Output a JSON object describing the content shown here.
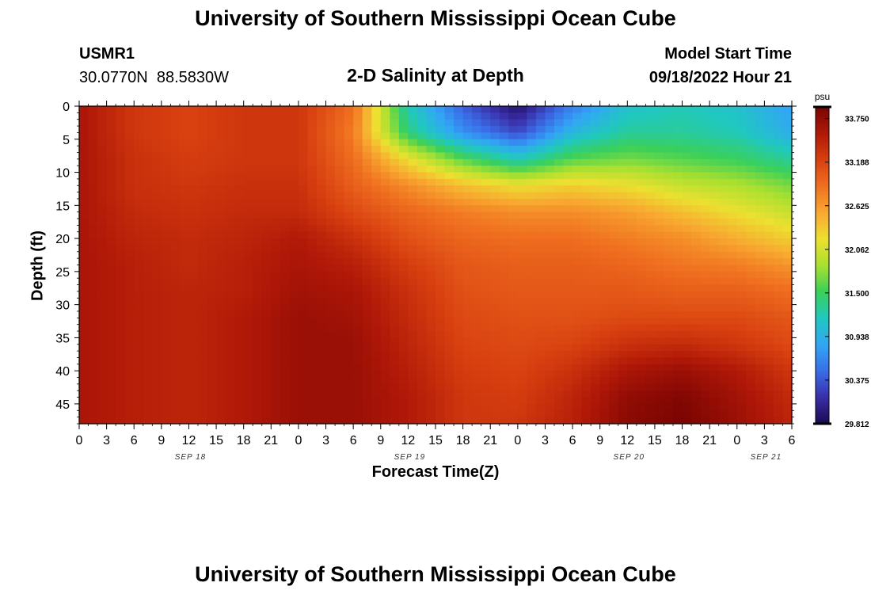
{
  "header": {
    "title": "University of Southern Mississippi Ocean Cube",
    "station_id": "USMR1",
    "station_coords": "30.0770N  88.5830W",
    "plot_title": "2-D Salinity at Depth",
    "model_start_label": "Model Start Time",
    "model_start_value": "09/18/2022 Hour 21"
  },
  "footer": {
    "title": "University of Southern Mississippi Ocean Cube"
  },
  "chart_data": {
    "type": "heatmap",
    "title": "2-D Salinity at Depth",
    "xlabel": "Forecast Time(Z)",
    "ylabel": "Depth (ft)",
    "x_tick_labels": [
      "0",
      "3",
      "6",
      "9",
      "12",
      "15",
      "18",
      "21",
      "0",
      "3",
      "6",
      "9",
      "12",
      "15",
      "18",
      "21",
      "0",
      "3",
      "6",
      "9",
      "12",
      "15",
      "18",
      "21",
      "0",
      "3",
      "6"
    ],
    "x_day_labels": [
      {
        "label": "SEP 18",
        "tick_index": 4
      },
      {
        "label": "SEP 19",
        "tick_index": 12
      },
      {
        "label": "SEP 20",
        "tick_index": 20
      },
      {
        "label": "SEP 21",
        "tick_index": 25
      }
    ],
    "y_ticks": [
      0,
      5,
      10,
      15,
      20,
      25,
      30,
      35,
      40,
      45
    ],
    "ylim": [
      0,
      48
    ],
    "y_inverted": true,
    "colorbar": {
      "unit": "psu",
      "tick_labels": [
        "33.750",
        "33.188",
        "32.625",
        "32.062",
        "31.500",
        "30.938",
        "30.375",
        "29.812"
      ],
      "min": 29.812,
      "max": 33.9,
      "colors": [
        "#1a0a50",
        "#3a2ea8",
        "#3a6ee8",
        "#32a6f5",
        "#20c8c0",
        "#3ad05a",
        "#a8e030",
        "#ece030",
        "#f8a830",
        "#f07020",
        "#d84010",
        "#b01808",
        "#7a0402"
      ]
    },
    "x_range_hours": [
      0,
      78
    ],
    "depth_max_ft": 48,
    "values": {
      "rows_depth_ft": [
        0,
        4,
        8,
        12,
        16,
        20,
        24,
        28,
        32,
        36,
        40,
        44,
        48
      ],
      "cols_hours": [
        0,
        6,
        12,
        18,
        24,
        30,
        36,
        42,
        48,
        54,
        60,
        66,
        72,
        78
      ],
      "grid": [
        [
          33.6,
          33.3,
          33.2,
          33.3,
          33.3,
          32.9,
          31.2,
          30.4,
          29.9,
          30.6,
          31.1,
          31.2,
          31.1,
          30.8
        ],
        [
          33.6,
          33.3,
          33.2,
          33.3,
          33.3,
          32.8,
          31.4,
          30.7,
          30.3,
          31.0,
          31.3,
          31.3,
          31.2,
          30.9
        ],
        [
          33.6,
          33.35,
          33.25,
          33.3,
          33.3,
          32.9,
          32.2,
          31.6,
          31.2,
          31.6,
          31.7,
          31.6,
          31.5,
          31.3
        ],
        [
          33.6,
          33.35,
          33.3,
          33.35,
          33.35,
          33.0,
          32.7,
          32.4,
          32.2,
          32.3,
          32.2,
          32.0,
          31.9,
          31.7
        ],
        [
          33.6,
          33.4,
          33.35,
          33.4,
          33.4,
          33.15,
          32.95,
          32.8,
          32.7,
          32.7,
          32.6,
          32.4,
          32.2,
          32.0
        ],
        [
          33.6,
          33.45,
          33.4,
          33.45,
          33.55,
          33.35,
          33.1,
          32.95,
          32.9,
          32.9,
          32.8,
          32.7,
          32.5,
          32.3
        ],
        [
          33.6,
          33.5,
          33.4,
          33.5,
          33.6,
          33.5,
          33.25,
          33.05,
          33.0,
          33.0,
          32.95,
          32.85,
          32.8,
          32.65
        ],
        [
          33.6,
          33.5,
          33.45,
          33.5,
          33.65,
          33.6,
          33.35,
          33.1,
          33.05,
          33.05,
          33.05,
          33.0,
          33.0,
          32.9
        ],
        [
          33.6,
          33.5,
          33.45,
          33.55,
          33.7,
          33.65,
          33.4,
          33.15,
          33.1,
          33.1,
          33.15,
          33.15,
          33.15,
          33.05
        ],
        [
          33.6,
          33.5,
          33.45,
          33.55,
          33.7,
          33.7,
          33.45,
          33.2,
          33.15,
          33.2,
          33.35,
          33.4,
          33.3,
          33.15
        ],
        [
          33.6,
          33.5,
          33.45,
          33.55,
          33.7,
          33.7,
          33.5,
          33.25,
          33.2,
          33.35,
          33.6,
          33.7,
          33.55,
          33.3
        ],
        [
          33.6,
          33.5,
          33.45,
          33.55,
          33.7,
          33.7,
          33.55,
          33.3,
          33.25,
          33.45,
          33.75,
          33.85,
          33.65,
          33.4
        ],
        [
          33.6,
          33.5,
          33.45,
          33.55,
          33.7,
          33.7,
          33.55,
          33.3,
          33.3,
          33.5,
          33.8,
          33.9,
          33.7,
          33.45
        ]
      ]
    }
  }
}
